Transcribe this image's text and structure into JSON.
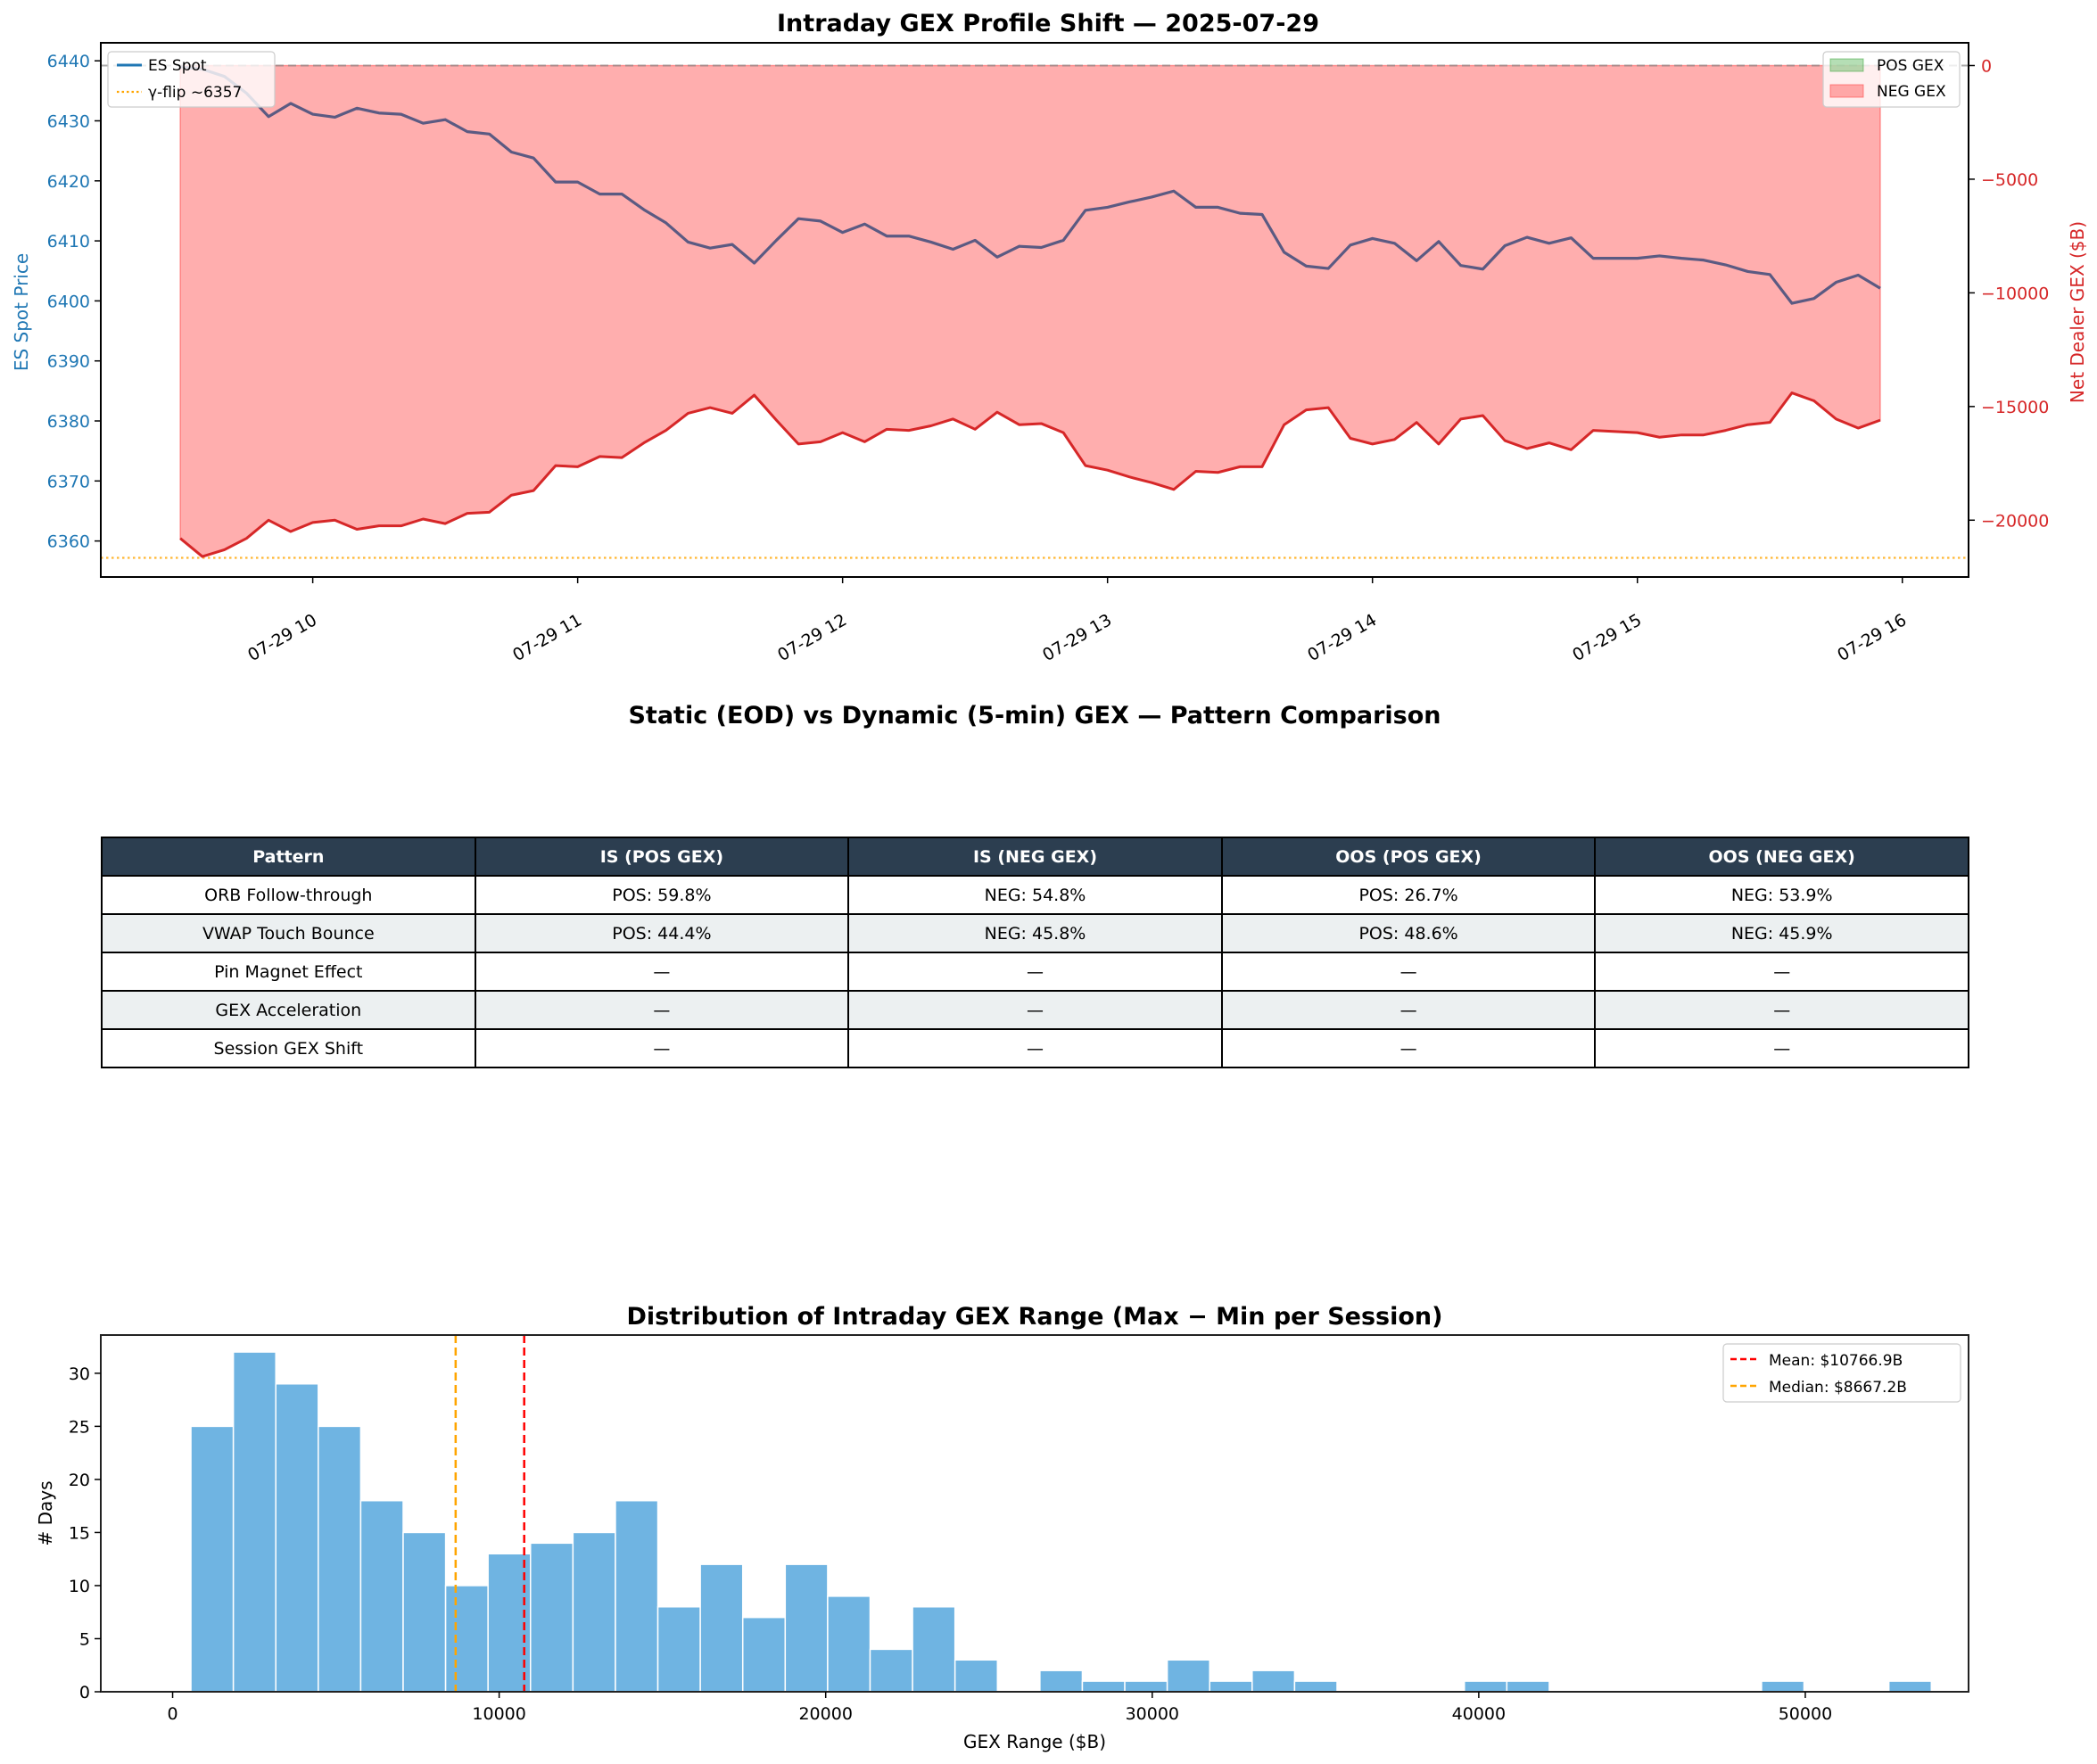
{
  "chart_data": [
    {
      "type": "line",
      "title": "Intraday GEX Profile Shift — 2025-07-29",
      "xlabel": "",
      "ylabel": "ES Spot Price",
      "y2label": "Net Dealer GEX ($B)",
      "ylim": [
        6354,
        6443
      ],
      "y2lim": [
        -22500,
        1000
      ],
      "yticks": [
        6360,
        6370,
        6380,
        6390,
        6400,
        6410,
        6420,
        6430,
        6440
      ],
      "y2ticks": [
        0,
        -5000,
        -10000,
        -15000,
        -20000
      ],
      "y2ticklabels": [
        "0",
        "−5000",
        "−10000",
        "−15000",
        "−20000"
      ],
      "xticks": [
        "07-29 10",
        "07-29 11",
        "07-29 12",
        "07-29 13",
        "07-29 14",
        "07-29 15",
        "07-29 16"
      ],
      "xrange_hours": [
        9.2,
        16.25
      ],
      "x_start_hour": 9.5,
      "x_step_minutes": 5,
      "gamma_flip": 6357.2,
      "zero_line": 0,
      "legend_left": [
        {
          "label": "ES Spot",
          "color": "#1f77b4",
          "style": "solid"
        },
        {
          "label": "γ-flip ~6357",
          "color": "#ffa500",
          "style": "dotted"
        }
      ],
      "legend_right": [
        {
          "label": "POS GEX",
          "color": "#2ca02c",
          "style": "fill"
        },
        {
          "label": "NEG GEX",
          "color": "#ff6b6b",
          "style": "fill"
        }
      ],
      "legend_placement": [
        "top-left",
        "top-right"
      ],
      "series": [
        {
          "name": "ES Spot",
          "axis": "left",
          "color": "#5b5a82",
          "values": [
            6439.0,
            6438.6,
            6437.4,
            6434.6,
            6430.7,
            6432.9,
            6431.1,
            6430.6,
            6432.1,
            6431.3,
            6431.1,
            6429.6,
            6430.2,
            6428.2,
            6427.8,
            6424.8,
            6423.8,
            6419.8,
            6419.8,
            6417.8,
            6417.8,
            6415.2,
            6413.0,
            6409.8,
            6408.8,
            6409.4,
            6406.3,
            6410.1,
            6413.7,
            6413.3,
            6411.4,
            6412.8,
            6410.8,
            6410.8,
            6409.8,
            6408.6,
            6410.1,
            6407.3,
            6409.1,
            6408.9,
            6410.1,
            6415.1,
            6415.6,
            6416.5,
            6417.3,
            6418.3,
            6415.6,
            6415.6,
            6414.6,
            6414.4,
            6408.1,
            6405.8,
            6405.4,
            6409.3,
            6410.4,
            6409.6,
            6406.7,
            6409.9,
            6405.9,
            6405.3,
            6409.2,
            6410.6,
            6409.6,
            6410.5,
            6407.1,
            6407.1,
            6407.1,
            6407.5,
            6407.1,
            6406.8,
            6406.0,
            6404.9,
            6404.4,
            6399.6,
            6400.4,
            6403.1,
            6404.3,
            6402.1
          ]
        },
        {
          "name": "Net Dealer GEX",
          "axis": "right",
          "color": "#d62728",
          "fill": "NEG GEX",
          "values": [
            -20800,
            -21600,
            -21300,
            -20800,
            -20000,
            -20500,
            -20100,
            -20000,
            -20400,
            -20250,
            -20250,
            -19950,
            -20150,
            -19700,
            -19650,
            -18900,
            -18700,
            -17600,
            -17650,
            -17200,
            -17250,
            -16600,
            -16050,
            -15300,
            -15050,
            -15300,
            -14500,
            -15600,
            -16650,
            -16550,
            -16150,
            -16550,
            -16000,
            -16050,
            -15850,
            -15550,
            -16000,
            -15250,
            -15800,
            -15750,
            -16150,
            -17600,
            -17800,
            -18100,
            -18350,
            -18650,
            -17850,
            -17900,
            -17650,
            -17650,
            -15800,
            -15150,
            -15050,
            -16400,
            -16650,
            -16450,
            -15700,
            -16650,
            -15550,
            -15400,
            -16500,
            -16850,
            -16600,
            -16900,
            -16050,
            -16100,
            -16150,
            -16350,
            -16250,
            -16250,
            -16050,
            -15800,
            -15700,
            -14400,
            -14750,
            -15550,
            -15950,
            -15600
          ]
        }
      ]
    },
    {
      "type": "table",
      "title": "Static (EOD) vs Dynamic (5-min) GEX — Pattern Comparison",
      "columns": [
        "Pattern",
        "IS (POS GEX)",
        "IS (NEG GEX)",
        "OOS (POS GEX)",
        "OOS (NEG GEX)"
      ],
      "rows": [
        [
          "ORB Follow-through",
          "POS: 59.8%",
          "NEG: 54.8%",
          "POS: 26.7%",
          "NEG: 53.9%"
        ],
        [
          "VWAP Touch Bounce",
          "POS: 44.4%",
          "NEG: 45.8%",
          "POS: 48.6%",
          "NEG: 45.9%"
        ],
        [
          "Pin Magnet Effect",
          "—",
          "—",
          "—",
          "—"
        ],
        [
          "GEX Acceleration",
          "—",
          "—",
          "—",
          "—"
        ],
        [
          "Session GEX Shift",
          "—",
          "—",
          "—",
          "—"
        ]
      ],
      "header_color": "#2c3e50",
      "alt_row_color": "#ecf0f1"
    },
    {
      "type": "bar",
      "subtype": "histogram",
      "title": "Distribution of Intraday GEX Range (Max − Min per Session)",
      "xlabel": "GEX Range ($B)",
      "ylabel": "# Days",
      "xlim": [
        -2200,
        55000
      ],
      "ylim": [
        0,
        33.6
      ],
      "xticks": [
        0,
        10000,
        20000,
        30000,
        40000,
        50000
      ],
      "yticks": [
        0,
        5,
        10,
        15,
        20,
        25,
        30
      ],
      "bin_start": 560,
      "bin_width": 1300,
      "counts": [
        25,
        32,
        29,
        25,
        18,
        15,
        10,
        13,
        14,
        15,
        18,
        8,
        12,
        7,
        12,
        9,
        4,
        8,
        3,
        0,
        2,
        1,
        1,
        3,
        1,
        2,
        1,
        0,
        0,
        0,
        1,
        1,
        0,
        0,
        0,
        0,
        0,
        1,
        0,
        0,
        1
      ],
      "bar_color": "#6fb4e2",
      "mean": 10766.9,
      "median": 8667.2,
      "legend": [
        {
          "label": "Mean: $10766.9B",
          "color": "#ff0000",
          "style": "dashed"
        },
        {
          "label": "Median: $8667.2B",
          "color": "#ffa500",
          "style": "dashed"
        }
      ],
      "legend_placement": "top-right"
    }
  ]
}
